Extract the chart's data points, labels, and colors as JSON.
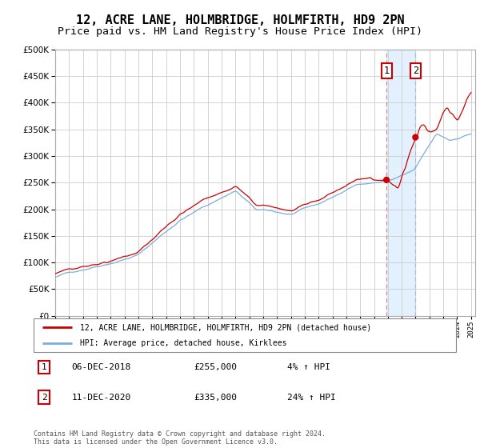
{
  "title": "12, ACRE LANE, HOLMBRIDGE, HOLMFIRTH, HD9 2PN",
  "subtitle": "Price paid vs. HM Land Registry's House Price Index (HPI)",
  "legend_line1": "12, ACRE LANE, HOLMBRIDGE, HOLMFIRTH, HD9 2PN (detached house)",
  "legend_line2": "HPI: Average price, detached house, Kirklees",
  "annotation1_label": "1",
  "annotation1_date": "06-DEC-2018",
  "annotation1_price": "£255,000",
  "annotation1_hpi": "4% ↑ HPI",
  "annotation2_label": "2",
  "annotation2_date": "11-DEC-2020",
  "annotation2_price": "£335,000",
  "annotation2_hpi": "24% ↑ HPI",
  "footer": "Contains HM Land Registry data © Crown copyright and database right 2024.\nThis data is licensed under the Open Government Licence v3.0.",
  "year_start": 1995,
  "year_end": 2025,
  "ylim": [
    0,
    500000
  ],
  "sale1_year": 2018.92,
  "sale1_price": 255000,
  "sale2_year": 2020.95,
  "sale2_price": 335000,
  "line_color_red": "#cc0000",
  "line_color_blue": "#7aaddb",
  "shade_color": "#ddeeff",
  "dashed_line_color": "#dd8888",
  "dashed_line2_color": "#aabbdd",
  "bg_color": "#ffffff",
  "grid_color": "#cccccc",
  "annotation_box_color": "#cc0000",
  "title_fontsize": 11,
  "subtitle_fontsize": 9.5
}
